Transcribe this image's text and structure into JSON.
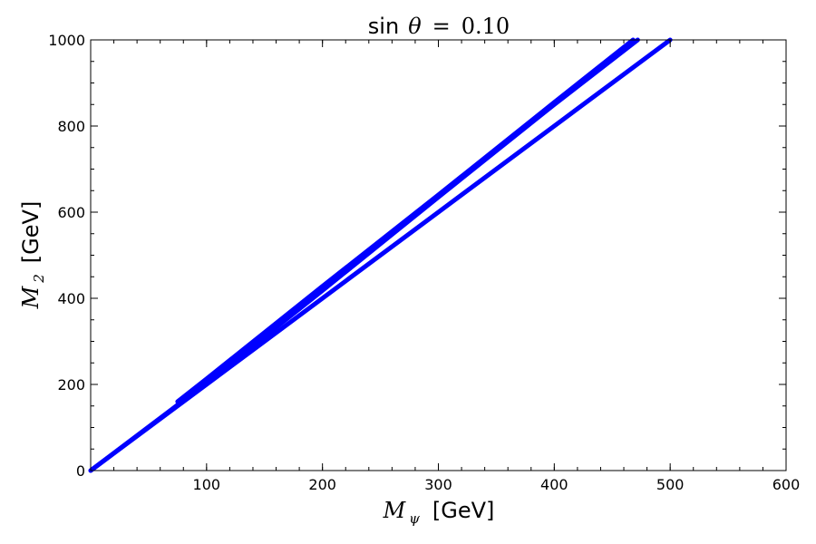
{
  "chart_data": {
    "type": "line",
    "title": {
      "prefix": "sin",
      "symbol": "θ",
      "op": "=",
      "value": "0.10"
    },
    "xlabel": {
      "symbol": "M",
      "subscript": "ψ",
      "unit": "[GeV]"
    },
    "ylabel": {
      "symbol": "M",
      "subscript": "2",
      "unit": "[GeV]"
    },
    "xlim": [
      0,
      600
    ],
    "ylim": [
      0,
      1000
    ],
    "xticks": [
      100,
      200,
      300,
      400,
      500,
      600
    ],
    "yticks": [
      0,
      200,
      400,
      600,
      800,
      1000
    ],
    "grid": false,
    "color": "#0000ff",
    "series": [
      {
        "x": [
          0,
          70,
          100,
          200,
          300,
          400,
          472
        ],
        "y": [
          0,
          142,
          204,
          418,
          635,
          850,
          1000
        ]
      },
      {
        "x": [
          75,
          100,
          200,
          300,
          400,
          468
        ],
        "y": [
          160,
          213,
          428,
          640,
          855,
          1000
        ]
      },
      {
        "x": [
          0,
          100,
          200,
          300,
          400,
          500
        ],
        "y": [
          0,
          200,
          400,
          600,
          800,
          1000
        ]
      }
    ]
  }
}
